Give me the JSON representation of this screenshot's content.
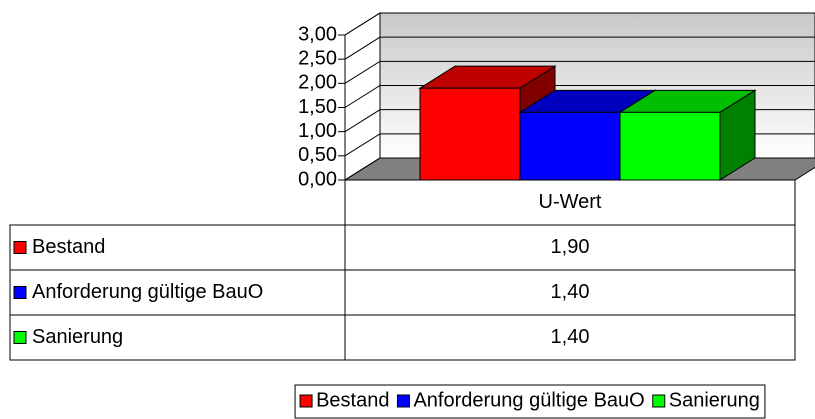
{
  "chart_data": {
    "type": "bar",
    "categories": [
      "U-Wert"
    ],
    "series": [
      {
        "name": "Bestand",
        "color": "#ff0000",
        "values": [
          1.9
        ],
        "value_labels": [
          "1,90"
        ]
      },
      {
        "name": "Anforderung gültige BauO",
        "color": "#0000ff",
        "values": [
          1.4
        ],
        "value_labels": [
          "1,40"
        ]
      },
      {
        "name": "Sanierung",
        "color": "#00ff00",
        "values": [
          1.4
        ],
        "value_labels": [
          "1,40"
        ]
      }
    ],
    "ylim": [
      0,
      3
    ],
    "yticks": [
      {
        "value": 0,
        "label": "0,00"
      },
      {
        "value": 0.5,
        "label": "0,50"
      },
      {
        "value": 1,
        "label": "1,00"
      },
      {
        "value": 1.5,
        "label": "1,50"
      },
      {
        "value": 2,
        "label": "2,00"
      },
      {
        "value": 2.5,
        "label": "2,50"
      },
      {
        "value": 3,
        "label": "3,00"
      }
    ],
    "grid": true,
    "legend": "bottom"
  }
}
